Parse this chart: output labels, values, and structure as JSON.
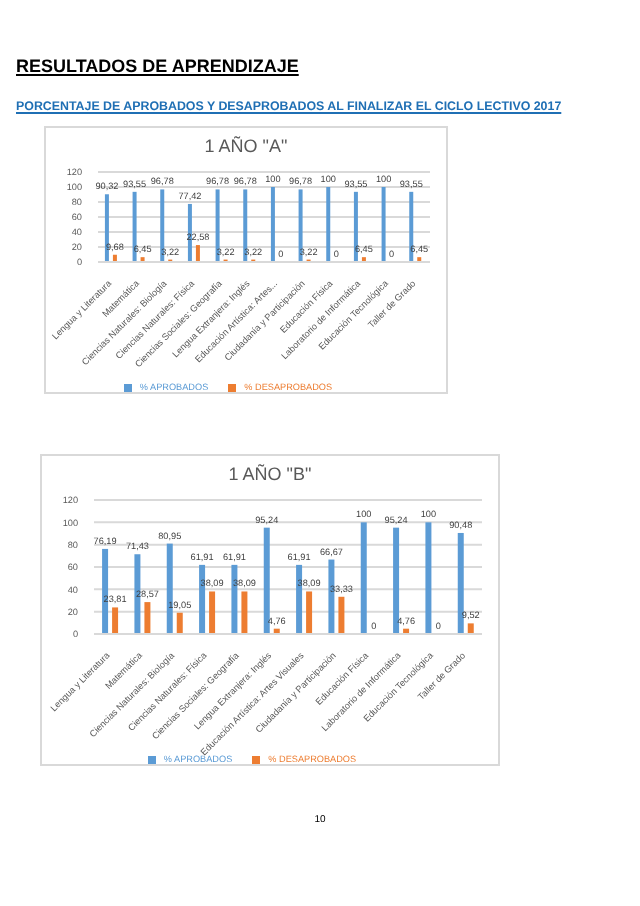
{
  "chart_data": [
    {
      "type": "bar",
      "title": "1 AÑO \"A\"",
      "annotations": [
        "RESULTADOS DE APRENDIZAJE",
        "PORCENTAJE DE APROBADOS Y DESAPROBADOS AL FINALIZAR EL CICLO LECTIVO 2017"
      ],
      "categories": [
        "Lengua y Literatura",
        "Matemática",
        "Ciencias Naturales: Biología",
        "Ciencias Naturales: Física",
        "Ciencias Sociales: Geografía",
        "Lengua Extranjera: Inglés",
        "Educación Artística: Artes...",
        "Ciudadanía y Participación",
        "Educación Física",
        "Laboratorio de Informática",
        "Educación Tecnológica",
        "Taller de Grado"
      ],
      "series": [
        {
          "name": "% APROBADOS",
          "color": "#5b9bd5",
          "values": [
            90.32,
            93.55,
            96.78,
            77.42,
            96.78,
            96.78,
            100,
            96.78,
            100,
            93.55,
            100,
            93.55
          ],
          "value_labels": [
            "90,32",
            "93,55",
            "96,78",
            "77,42",
            "96,78",
            "96,78",
            "100",
            "96,78",
            "100",
            "93,55",
            "100",
            "93,55"
          ]
        },
        {
          "name": "% DESAPROBADOS",
          "color": "#ed7d31",
          "values": [
            9.68,
            6.45,
            3.22,
            22.58,
            3.22,
            3.22,
            0,
            3.22,
            0,
            6.45,
            0,
            6.45
          ],
          "value_labels": [
            "9,68",
            "6,45",
            "3,22",
            "22,58",
            "3,22",
            "3,22",
            "0",
            "3,22",
            "0",
            "6,45",
            "0",
            "6,45"
          ]
        }
      ],
      "ylim": [
        0,
        120
      ],
      "yticks": [
        0,
        20,
        40,
        60,
        80,
        100,
        120
      ],
      "grid": "y",
      "legend": "bottom"
    },
    {
      "type": "bar",
      "title": "1 AÑO \"B\"",
      "annotations": [
        "10"
      ],
      "categories": [
        "Lengua y Literatura",
        "Matemática",
        "Ciencias Naturales: Biología",
        "Ciencias Naturales: Física",
        "Ciencias Sociales: Geografía",
        "Lengua Extranjera: Inglés",
        "Educación Artística: Artes Visuales",
        "Ciudadanía y Participación",
        "Educación Física",
        "Laboratorio de Informática",
        "Educación Tecnológica",
        "Taller de Grado"
      ],
      "series": [
        {
          "name": "% APROBADOS",
          "color": "#5b9bd5",
          "values": [
            76.19,
            71.43,
            80.95,
            61.91,
            61.91,
            95.24,
            61.91,
            66.67,
            100,
            95.24,
            100,
            90.48
          ],
          "value_labels": [
            "76,19",
            "71,43",
            "80,95",
            "61,91",
            "61,91",
            "95,24",
            "61,91",
            "66,67",
            "100",
            "95,24",
            "100",
            "90,48"
          ]
        },
        {
          "name": "% DESAPROBADOS",
          "color": "#ed7d31",
          "values": [
            23.81,
            28.57,
            19.05,
            38.09,
            38.09,
            4.76,
            38.09,
            33.33,
            0,
            4.76,
            0,
            9.52
          ],
          "value_labels": [
            "23,81",
            "28,57",
            "19,05",
            "38,09",
            "38,09",
            "4,76",
            "38,09",
            "33,33",
            "0",
            "4,76",
            "0",
            "9,52"
          ]
        }
      ],
      "ylim": [
        0,
        120
      ],
      "yticks": [
        0,
        20,
        40,
        60,
        80,
        100,
        120
      ],
      "grid": "y",
      "legend": "bottom"
    }
  ]
}
